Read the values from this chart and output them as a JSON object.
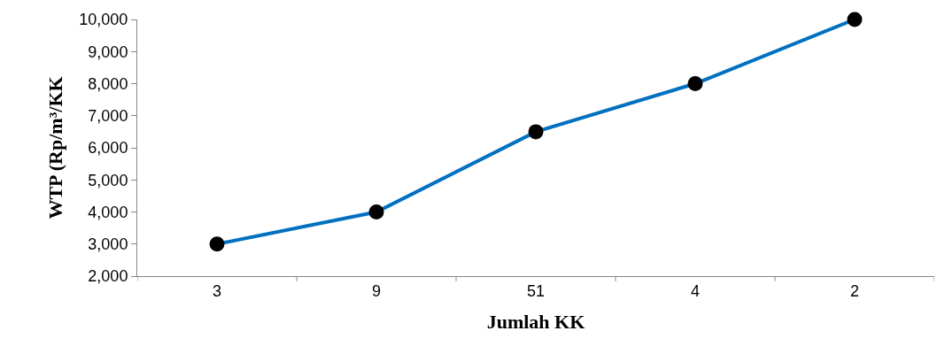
{
  "chart_data": {
    "type": "line",
    "xlabel": "Jumlah KK",
    "ylabel": "WTP (Rp/m³/KK",
    "categories": [
      "3",
      "9",
      "51",
      "4",
      "2"
    ],
    "series": [
      {
        "color": "#0070c0",
        "values": [
          3000,
          4000,
          6500,
          8000,
          10000
        ]
      }
    ],
    "ylim": [
      2000,
      10000
    ],
    "yticks": [
      {
        "value": 2000,
        "label": "2,000"
      },
      {
        "value": 3000,
        "label": "3,000"
      },
      {
        "value": 4000,
        "label": "4,000"
      },
      {
        "value": 5000,
        "label": "5,000"
      },
      {
        "value": 6000,
        "label": "6,000"
      },
      {
        "value": 7000,
        "label": "7,000"
      },
      {
        "value": 8000,
        "label": "8,000"
      },
      {
        "value": 9000,
        "label": "9,000"
      },
      {
        "value": 10000,
        "label": "10,000"
      }
    ],
    "marker": "circle",
    "line_style": "solid"
  }
}
